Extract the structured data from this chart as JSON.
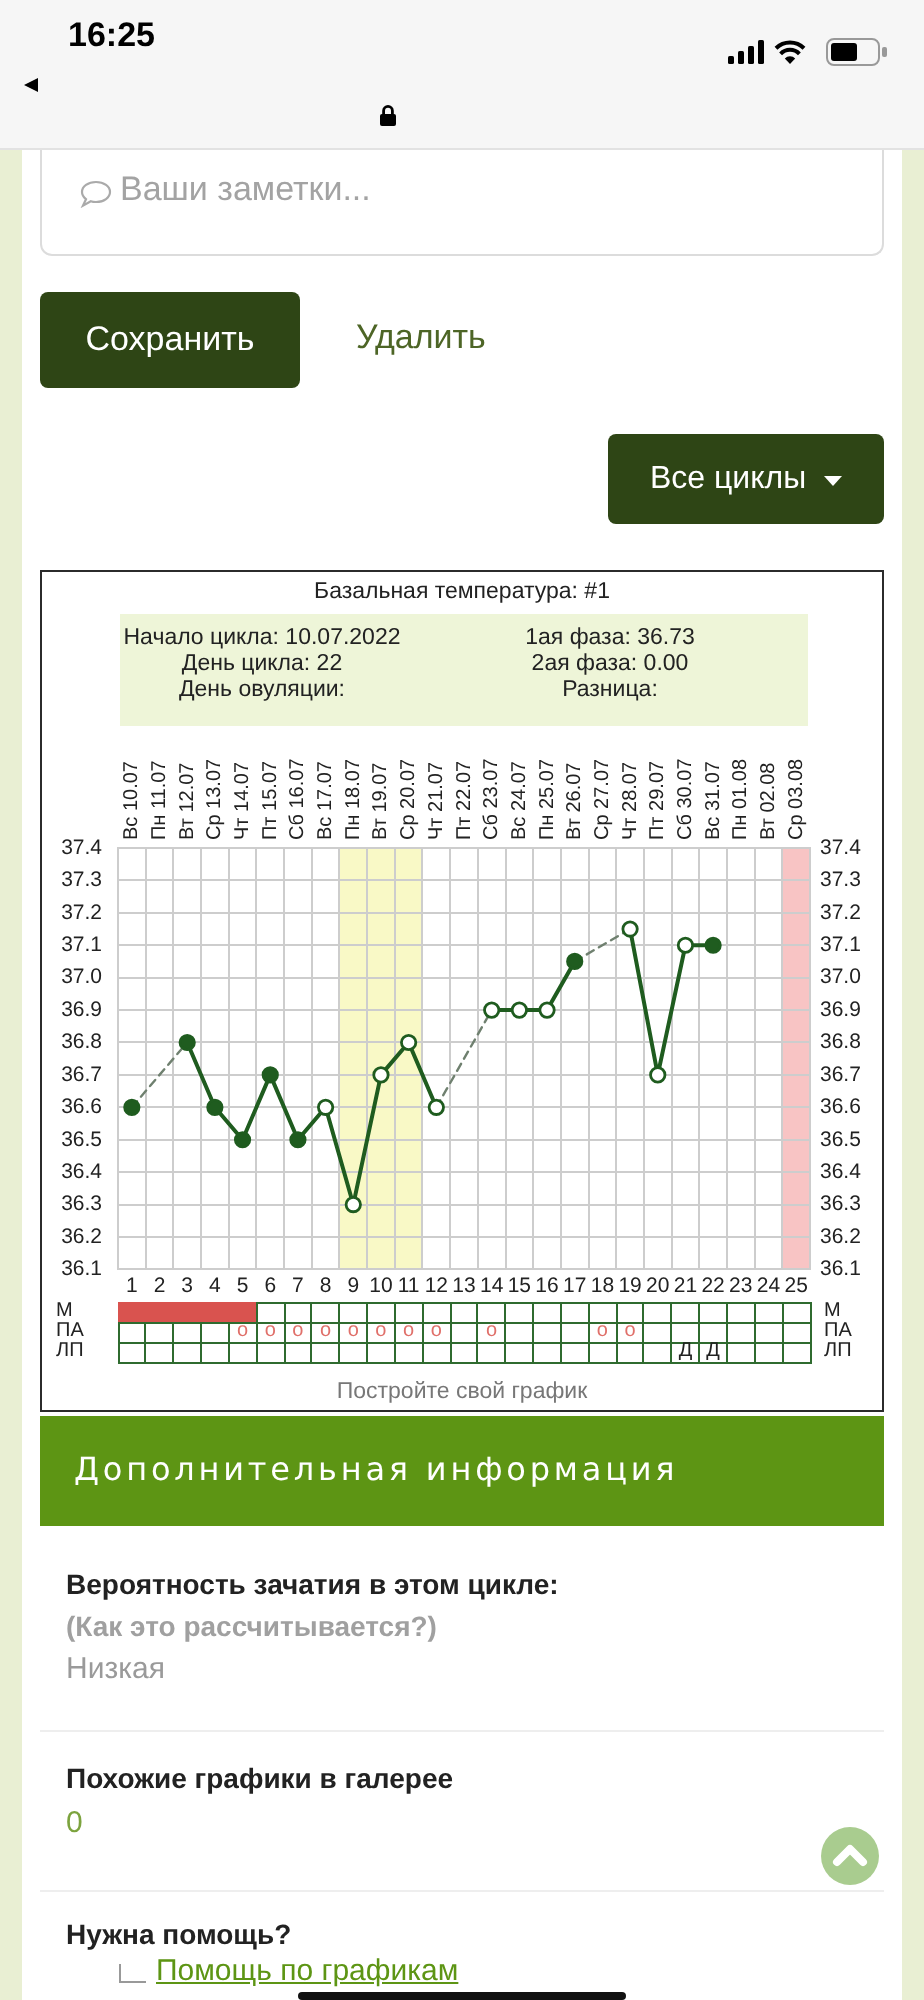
{
  "chart_data": [
    {
      "type": "other",
      "annotations": [
        "16:25",
        "Ваши заметки...",
        "Сохранить",
        "Удалить",
        "Все циклы"
      ]
    },
    {
      "type": "line",
      "title": "Базальная температура: #1",
      "annotations": [
        "Начало цикла: 10.07.2022",
        "День цикла: 22",
        "День овуляции:",
        "1ая фаза: 36.73",
        "2ая фаза: 0.00",
        "Разница:"
      ],
      "x": [
        1,
        2,
        3,
        4,
        5,
        6,
        7,
        8,
        9,
        10,
        11,
        12,
        13,
        14,
        15,
        16,
        17,
        18,
        19,
        20,
        21,
        22
      ],
      "xlim": [
        0.5,
        25.5
      ],
      "xticks": [
        1,
        2,
        3,
        4,
        5,
        6,
        7,
        8,
        9,
        10,
        11,
        12,
        13,
        14,
        15,
        16,
        17,
        18,
        19,
        20,
        21,
        22,
        23,
        24,
        25
      ],
      "x2lim": [
        "2022-07-09T12:00",
        "2022-08-03T12:00"
      ],
      "x2ticks": [
        {
          "value": "2022-07-10",
          "label": "Вс 10.07"
        },
        {
          "value": "2022-07-11",
          "label": "Пн 11.07"
        },
        {
          "value": "2022-07-12",
          "label": "Вт 12.07"
        },
        {
          "value": "2022-07-13",
          "label": "Ср 13.07"
        },
        {
          "value": "2022-07-14",
          "label": "Чт 14.07"
        },
        {
          "value": "2022-07-15",
          "label": "Пт 15.07"
        },
        {
          "value": "2022-07-16",
          "label": "Сб 16.07"
        },
        {
          "value": "2022-07-17",
          "label": "Вс 17.07"
        },
        {
          "value": "2022-07-18",
          "label": "Пн 18.07"
        },
        {
          "value": "2022-07-19",
          "label": "Вт 19.07"
        },
        {
          "value": "2022-07-20",
          "label": "Ср 20.07"
        },
        {
          "value": "2022-07-21",
          "label": "Чт 21.07"
        },
        {
          "value": "2022-07-22",
          "label": "Пт 22.07"
        },
        {
          "value": "2022-07-23",
          "label": "Сб 23.07"
        },
        {
          "value": "2022-07-24",
          "label": "Вс 24.07"
        },
        {
          "value": "2022-07-25",
          "label": "Пн 25.07"
        },
        {
          "value": "2022-07-26",
          "label": "Вт 26.07"
        },
        {
          "value": "2022-07-27",
          "label": "Ср 27.07"
        },
        {
          "value": "2022-07-28",
          "label": "Чт 28.07"
        },
        {
          "value": "2022-07-29",
          "label": "Пт 29.07"
        },
        {
          "value": "2022-07-30",
          "label": "Сб 30.07"
        },
        {
          "value": "2022-07-31",
          "label": "Вс 31.07"
        },
        {
          "value": "2022-08-01",
          "label": "Пн 01.08"
        },
        {
          "value": "2022-08-02",
          "label": "Вт 02.08"
        },
        {
          "value": "2022-08-03",
          "label": "Ср 03.08"
        }
      ],
      "ylim": [
        36.1,
        37.4
      ],
      "yticks": [
        36.1,
        36.2,
        36.3,
        36.4,
        36.5,
        36.6,
        36.7,
        36.8,
        36.9,
        {
          "value": 37,
          "label": "37.0"
        },
        37.1,
        37.2,
        37.3,
        37.4
      ],
      "y2lim": [
        36.1,
        37.4
      ],
      "y2ticks": [
        36.1,
        36.2,
        36.3,
        36.4,
        36.5,
        36.6,
        36.7,
        36.8,
        36.9,
        {
          "value": 37,
          "label": "37.0"
        },
        37.1,
        37.2,
        37.3,
        37.4
      ],
      "series": [
        {
          "color": "#1f5c1f",
          "values": [
            36.6,
            null,
            36.8,
            36.6,
            36.5,
            36.7,
            36.5,
            36.6,
            36.3,
            36.7,
            36.8,
            36.6,
            null,
            36.9,
            36.9,
            36.9,
            37.05,
            null,
            37.15,
            36.7,
            37.1,
            37.1
          ],
          "colors": [
            "#1f5c1f",
            null,
            "#1f5c1f",
            "#1f5c1f",
            "#1f5c1f",
            "#1f5c1f",
            "#1f5c1f",
            "#ffffff",
            "#ffffff",
            "#ffffff",
            "#ffffff",
            "#ffffff",
            null,
            "#ffffff",
            "#ffffff",
            "#ffffff",
            "#1f5c1f",
            null,
            "#ffffff",
            "#ffffff",
            "#ffffff",
            "#1f5c1f"
          ]
        },
        {
          "type": "line",
          "color": "#6f806f",
          "line_style": "dashed",
          "marker": "none",
          "x": [
            1,
            3
          ],
          "values": [
            36.6,
            36.8
          ]
        },
        {
          "type": "line",
          "color": "#6f806f",
          "line_style": "dashed",
          "marker": "none",
          "x": [
            12,
            14
          ],
          "values": [
            36.6,
            36.9
          ]
        },
        {
          "type": "line",
          "color": "#6f806f",
          "line_style": "dashed",
          "marker": "none",
          "x": [
            17,
            19
          ],
          "values": [
            37.05,
            37.15
          ]
        }
      ],
      "bands": [
        {
          "axis": "x",
          "from": 8.5,
          "to": 11.5,
          "color": "#f9f9c6"
        },
        {
          "axis": "x",
          "from": 24.5,
          "to": 25.5,
          "color": "#f8c4c4"
        }
      ],
      "grid": true,
      "marker": "circle",
      "line_style": "solid"
    },
    {
      "type": "other",
      "categories": [
        null,
        null,
        null,
        null,
        null,
        null,
        null,
        null,
        null,
        null,
        null,
        null,
        null,
        null,
        null,
        null,
        null,
        null,
        null,
        null,
        null,
        null,
        null,
        null,
        null
      ],
      "y_categories": [
        "М",
        "ПА",
        "ЛП"
      ],
      "y2_categories": [
        "М",
        "ПА",
        "ЛП"
      ],
      "cell_labels": [
        [
          null,
          null,
          null,
          null,
          null,
          null,
          null,
          null,
          null,
          null,
          null,
          null,
          null,
          null,
          null,
          null,
          null,
          null,
          null,
          null,
          null,
          null,
          null,
          null,
          null
        ],
        [
          null,
          null,
          null,
          null,
          "o",
          "o",
          "o",
          "o",
          "o",
          "o",
          "o",
          "o",
          null,
          "o",
          null,
          null,
          null,
          "o",
          "o",
          null,
          null,
          null,
          null,
          null,
          null
        ],
        [
          null,
          null,
          null,
          null,
          null,
          null,
          null,
          null,
          null,
          null,
          null,
          null,
          null,
          null,
          null,
          null,
          null,
          null,
          null,
          null,
          "Д",
          "Д",
          null,
          null,
          null
        ]
      ],
      "colors": [
        [
          "#d9534f",
          "#d9534f",
          "#d9534f",
          "#d9534f",
          "#d9534f",
          null,
          null,
          null,
          null,
          null,
          null,
          null,
          null,
          null,
          null,
          null,
          null,
          null,
          null,
          null,
          null,
          null,
          null,
          null,
          null
        ],
        [
          null,
          null,
          null,
          null,
          "#e0706a",
          "#e0706a",
          "#e0706a",
          "#e0706a",
          "#e0706a",
          "#e0706a",
          "#e0706a",
          "#e0706a",
          null,
          "#e0706a",
          null,
          null,
          null,
          "#e0706a",
          "#e0706a",
          null,
          null,
          null,
          null,
          null,
          null
        ],
        [
          null,
          null,
          null,
          null,
          null,
          null,
          null,
          null,
          null,
          null,
          null,
          null,
          null,
          null,
          null,
          null,
          null,
          null,
          null,
          null,
          "#222222",
          "#222222",
          null,
          null,
          null
        ]
      ],
      "annotations": [
        "Постройте свой график"
      ]
    },
    {
      "type": "other",
      "title": "Дополнительная информация",
      "annotations": [
        "Вероятность зачатия в этом цикле:",
        "(Как это рассчитывается?)",
        "Низкая",
        "Похожие графики в галерее",
        "0",
        "Нужна помощь?",
        "Помощь по графикам"
      ]
    }
  ]
}
